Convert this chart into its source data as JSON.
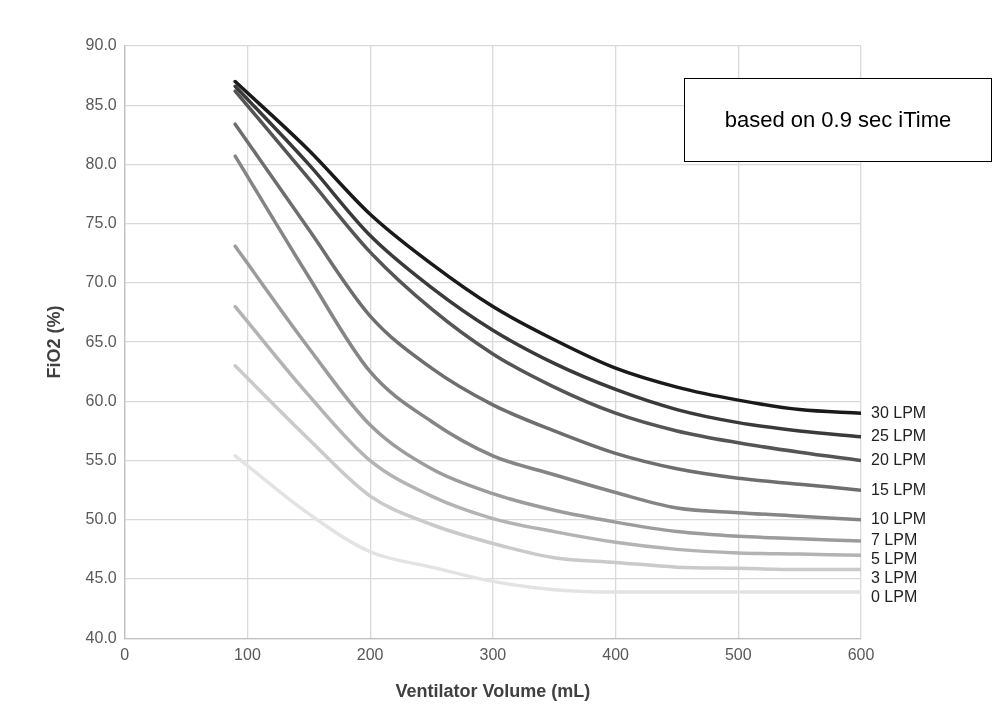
{
  "chart_data": {
    "type": "line",
    "xlabel": "Ventilator Volume (mL)",
    "ylabel": "FiO2 (%)",
    "annotations": [
      "based on 0.9 sec iTime"
    ],
    "x": [
      90,
      150,
      200,
      250,
      300,
      350,
      400,
      450,
      500,
      550,
      600
    ],
    "series": [
      {
        "name": "30 LPM",
        "color": "#1a1a1a",
        "values": [
          87.0,
          81.2,
          75.8,
          71.6,
          68.0,
          65.2,
          62.8,
          61.2,
          60.1,
          59.3,
          59.0
        ]
      },
      {
        "name": "25 LPM",
        "color": "#3a3a3a",
        "values": [
          86.6,
          80.0,
          74.0,
          69.6,
          66.0,
          63.2,
          61.0,
          59.3,
          58.2,
          57.5,
          57.0
        ]
      },
      {
        "name": "20 LPM",
        "color": "#555555",
        "values": [
          86.2,
          78.8,
          72.6,
          67.8,
          64.0,
          61.2,
          59.0,
          57.5,
          56.5,
          55.7,
          55.0
        ]
      },
      {
        "name": "15 LPM",
        "color": "#6e6e6e",
        "values": [
          83.4,
          74.5,
          67.2,
          62.8,
          59.7,
          57.5,
          55.6,
          54.3,
          53.5,
          53.0,
          52.5
        ]
      },
      {
        "name": "10 LPM",
        "color": "#858585",
        "values": [
          80.7,
          70.5,
          62.5,
          58.3,
          55.4,
          53.8,
          52.3,
          51.0,
          50.6,
          50.3,
          50.0
        ]
      },
      {
        "name": "7 LPM",
        "color": "#9c9c9c",
        "values": [
          73.1,
          64.5,
          58.0,
          54.3,
          52.2,
          50.8,
          49.8,
          49.0,
          48.6,
          48.4,
          48.2
        ]
      },
      {
        "name": "5 LPM",
        "color": "#b3b3b3",
        "values": [
          68.0,
          60.5,
          55.0,
          52.0,
          50.1,
          49.0,
          48.1,
          47.5,
          47.2,
          47.1,
          47.0
        ]
      },
      {
        "name": "3 LPM",
        "color": "#cacaca",
        "values": [
          63.0,
          56.8,
          52.0,
          49.6,
          48.0,
          46.8,
          46.4,
          46.0,
          45.9,
          45.8,
          45.8
        ]
      },
      {
        "name": "0 LPM",
        "color": "#e3e3e3",
        "values": [
          55.4,
          50.5,
          47.3,
          46.0,
          44.8,
          44.1,
          43.9,
          43.9,
          43.9,
          43.9,
          43.9
        ]
      }
    ],
    "xlim": [
      0,
      600
    ],
    "xticks": [
      0,
      100,
      200,
      300,
      400,
      500,
      600
    ],
    "ylim": [
      40,
      90
    ],
    "yticks": [
      {
        "value": 40,
        "label": "40.0"
      },
      {
        "value": 45,
        "label": "45.0"
      },
      {
        "value": 50,
        "label": "50.0"
      },
      {
        "value": 55,
        "label": "55.0"
      },
      {
        "value": 60,
        "label": "60.0"
      },
      {
        "value": 65,
        "label": "65.0"
      },
      {
        "value": 70,
        "label": "70.0"
      },
      {
        "value": 75,
        "label": "75.0"
      },
      {
        "value": 80,
        "label": "80.0"
      },
      {
        "value": 85,
        "label": "85.0"
      },
      {
        "value": 90,
        "label": "90.0"
      }
    ],
    "grid": true,
    "legend": false,
    "marker": "none",
    "line_style": "solid"
  }
}
